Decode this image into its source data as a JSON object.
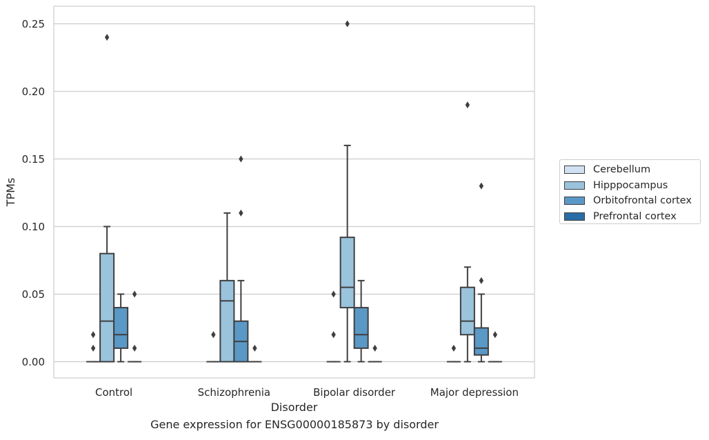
{
  "chart_data": {
    "type": "box",
    "title": "",
    "caption": "Gene expression for ENSG00000185873 by disorder",
    "xlabel": "Disorder",
    "ylabel": "TPMs",
    "ylim": [
      -0.012,
      0.263
    ],
    "yticks": [
      0.0,
      0.05,
      0.1,
      0.15,
      0.2,
      0.25
    ],
    "ytick_labels": [
      "0.00",
      "0.05",
      "0.10",
      "0.15",
      "0.20",
      "0.25"
    ],
    "grid": "horizontal",
    "legend_position": "right, outside",
    "categories": [
      "Control",
      "Schizophrenia",
      "Bipolar disorder",
      "Major depression"
    ],
    "series": [
      {
        "name": "Cerebellum",
        "color": "#d0e1f2",
        "boxes": [
          {
            "min": 0.0,
            "q1": 0.0,
            "median": 0.0,
            "q3": 0.0,
            "max": 0.0,
            "outliers": [
              0.01,
              0.02
            ]
          },
          {
            "min": 0.0,
            "q1": 0.0,
            "median": 0.0,
            "q3": 0.0,
            "max": 0.0,
            "outliers": [
              0.02
            ]
          },
          {
            "min": 0.0,
            "q1": 0.0,
            "median": 0.0,
            "q3": 0.0,
            "max": 0.0,
            "outliers": [
              0.02,
              0.05
            ]
          },
          {
            "min": 0.0,
            "q1": 0.0,
            "median": 0.0,
            "q3": 0.0,
            "max": 0.0,
            "outliers": [
              0.01
            ]
          }
        ]
      },
      {
        "name": "Hipppocampus",
        "color": "#9ac3dc",
        "boxes": [
          {
            "min": 0.0,
            "q1": 0.0,
            "median": 0.03,
            "q3": 0.08,
            "max": 0.1,
            "outliers": [
              0.24
            ]
          },
          {
            "min": 0.0,
            "q1": 0.0,
            "median": 0.045,
            "q3": 0.06,
            "max": 0.11,
            "outliers": []
          },
          {
            "min": 0.0,
            "q1": 0.04,
            "median": 0.055,
            "q3": 0.092,
            "max": 0.16,
            "outliers": [
              0.25
            ]
          },
          {
            "min": 0.0,
            "q1": 0.02,
            "median": 0.03,
            "q3": 0.055,
            "max": 0.07,
            "outliers": [
              0.19
            ]
          }
        ]
      },
      {
        "name": "Orbitofrontal cortex",
        "color": "#5a98c6",
        "boxes": [
          {
            "min": 0.0,
            "q1": 0.01,
            "median": 0.02,
            "q3": 0.04,
            "max": 0.05,
            "outliers": []
          },
          {
            "min": 0.0,
            "q1": 0.0,
            "median": 0.015,
            "q3": 0.03,
            "max": 0.06,
            "outliers": [
              0.11,
              0.15
            ]
          },
          {
            "min": 0.0,
            "q1": 0.01,
            "median": 0.02,
            "q3": 0.04,
            "max": 0.06,
            "outliers": []
          },
          {
            "min": 0.0,
            "q1": 0.005,
            "median": 0.01,
            "q3": 0.025,
            "max": 0.05,
            "outliers": [
              0.06,
              0.13
            ]
          }
        ]
      },
      {
        "name": "Prefrontal cortex",
        "color": "#2a6ca6",
        "boxes": [
          {
            "min": 0.0,
            "q1": 0.0,
            "median": 0.0,
            "q3": 0.0,
            "max": 0.0,
            "outliers": [
              0.01,
              0.05
            ]
          },
          {
            "min": 0.0,
            "q1": 0.0,
            "median": 0.0,
            "q3": 0.0,
            "max": 0.0,
            "outliers": [
              0.01
            ]
          },
          {
            "min": 0.0,
            "q1": 0.0,
            "median": 0.0,
            "q3": 0.0,
            "max": 0.0,
            "outliers": [
              0.01
            ]
          },
          {
            "min": 0.0,
            "q1": 0.0,
            "median": 0.0,
            "q3": 0.0,
            "max": 0.0,
            "outliers": [
              0.02
            ]
          }
        ]
      }
    ]
  }
}
